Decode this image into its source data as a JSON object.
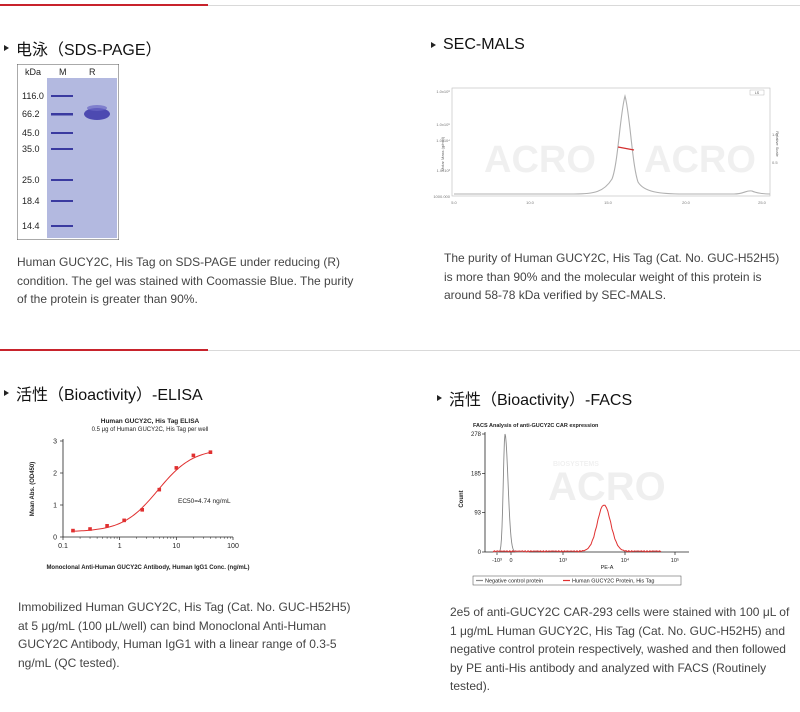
{
  "sections": {
    "sds": {
      "heading": "电泳（SDS-PAGE）",
      "caption": "Human GUCY2C, His Tag on SDS-PAGE under reducing (R) condition. The gel was stained with Coomassie Blue. The purity of the protein is greater than 90%.",
      "gel": {
        "columns": [
          "kDa",
          "M",
          "R"
        ],
        "markers": [
          "116.0",
          "66.2",
          "45.0",
          "35.0",
          "25.0",
          "18.4",
          "14.4"
        ]
      }
    },
    "secmals": {
      "heading": "SEC-MALS",
      "caption": "The purity of Human GUCY2C, His Tag (Cat. No. GUC-H52H5) is more than 90% and the molecular weight of this protein is around 58-78 kDa verified by SEC-MALS.",
      "chart": {
        "ylabel": "Molar Mass (g/mol)",
        "y2label": "Relative Scale",
        "legend": "LS",
        "yticks": [
          "1.0x10⁶",
          "1.0x10⁵",
          "1.0x10⁴",
          "1.0x10³",
          "1000.000"
        ],
        "xticks": [
          "5.0",
          "10.0",
          "15.0",
          "20.0",
          "25.0"
        ],
        "y2ticks": [
          "1.0",
          "0.5"
        ]
      }
    },
    "elisa": {
      "heading": "活性（Bioactivity）-ELISA",
      "caption": "Immobilized Human GUCY2C, His Tag (Cat. No. GUC-H52H5) at 5 μg/mL (100 μL/well) can bind Monoclonal Anti-Human GUCY2C Antibody, Human IgG1 with a linear range of 0.3-5 ng/mL (QC tested)."
    },
    "facs": {
      "heading": "活性（Bioactivity）-FACS",
      "caption": "2e5 of anti-GUCY2C CAR-293 cells were stained with 100 μL of 1 μg/mL Human GUCY2C, His Tag (Cat. No. GUC-H52H5) and negative control protein respectively, washed and then followed by PE anti-His antibody and analyzed with FACS (Routinely tested)."
    }
  },
  "watermark": "ACRO",
  "watermark_small": "BIOSYSTEMS",
  "colors": {
    "accent": "#c8232c",
    "curve_red": "#e03030",
    "gel_bg": "#b3b9e0",
    "band": "#3b36a8"
  },
  "chart_data": [
    {
      "type": "line",
      "title": "Human GUCY2C, His Tag ELISA",
      "subtitle": "0.5 μg of Human GUCY2C, His Tag per well",
      "xlabel": "Monoclonal Anti-Human GUCY2C Antibody, Human IgG1 Conc. (ng/mL)",
      "ylabel": "Mean Abs. (OD450)",
      "xscale": "log",
      "xlim": [
        0.1,
        100
      ],
      "ylim": [
        0,
        3
      ],
      "xticks": [
        "0.1",
        "1",
        "10",
        "100"
      ],
      "yticks": [
        "0",
        "1",
        "2",
        "3"
      ],
      "annotation": "EC50=4.74 ng/mL",
      "x": [
        0.15,
        0.3,
        0.6,
        1.2,
        2.5,
        5,
        10,
        20,
        40
      ],
      "y": [
        0.2,
        0.25,
        0.35,
        0.52,
        0.85,
        1.48,
        2.16,
        2.55,
        2.65
      ]
    },
    {
      "type": "line",
      "title": "FACS Analysis of anti-GUCY2C CAR expression",
      "xlabel": "PE-A",
      "ylabel": "Count",
      "yticks": [
        "0",
        "93",
        "185",
        "278"
      ],
      "ylim": [
        0,
        278
      ],
      "xticks": [
        "-10³",
        "0",
        "10³",
        "10⁴",
        "10⁵"
      ],
      "series": [
        {
          "name": "Negative control protein",
          "color": "#888888",
          "peak_count": 278
        },
        {
          "name": "Human GUCY2C Protein, His Tag",
          "color": "#e03030",
          "peak_count": 110
        }
      ]
    }
  ]
}
